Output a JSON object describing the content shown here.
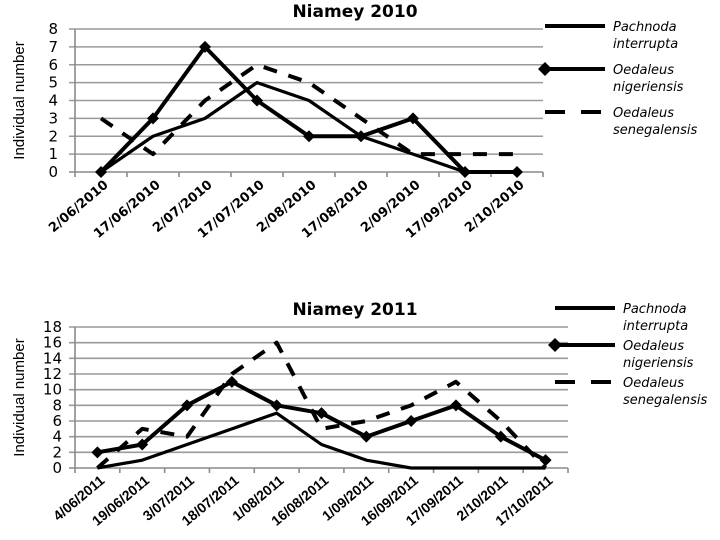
{
  "chart_data": [
    {
      "type": "line",
      "title": "Niamey  2010",
      "xlabel": "",
      "ylabel": "Individual number",
      "ylim": [
        0,
        8
      ],
      "yticks": [
        0,
        1,
        2,
        3,
        4,
        5,
        6,
        7,
        8
      ],
      "grid": true,
      "legend_position": "right",
      "categories": [
        "2/06/2010",
        "17/06/2010",
        "2/07/2010",
        "17/07/2010",
        "2/08/2010",
        "17/08/2010",
        "2/09/2010",
        "17/09/2010",
        "2/10/2010"
      ],
      "series": [
        {
          "name": "Pachnoda interrupta",
          "legend_lines": [
            "Pachnoda",
            "interrupta"
          ],
          "style": "solid",
          "values": [
            0,
            2,
            3,
            5,
            4,
            2,
            1,
            0,
            0
          ]
        },
        {
          "name": "Oedaleus nigeriensis",
          "legend_lines": [
            "Oedaleus",
            "nigeriensis"
          ],
          "style": "solid-diamond",
          "values": [
            0,
            3,
            7,
            4,
            2,
            2,
            3,
            0,
            0
          ]
        },
        {
          "name": "Oedaleus senegalensis",
          "legend_lines": [
            "Oedaleus",
            "senegalensis"
          ],
          "style": "dashed",
          "values": [
            3,
            1,
            4,
            6,
            5,
            3,
            1,
            1,
            1
          ]
        }
      ]
    },
    {
      "type": "line",
      "title": "Niamey 2011",
      "xlabel": "",
      "ylabel": "Individual  number",
      "ylim": [
        0,
        18
      ],
      "yticks": [
        0,
        2,
        4,
        6,
        8,
        10,
        12,
        14,
        16,
        18
      ],
      "grid": true,
      "legend_position": "right",
      "categories": [
        "4/06/2011",
        "19/06/2011",
        "3/07/2011",
        "18/07/2011",
        "1/08/2011",
        "16/08/2011",
        "1/09/2011",
        "16/09/2011",
        "17/09/2011",
        "2/10/2011",
        "17/10/2011"
      ],
      "series": [
        {
          "name": "Pachnoda interrupta",
          "legend_lines": [
            "Pachnoda",
            "interrupta"
          ],
          "style": "solid",
          "values": [
            0,
            1,
            3,
            5,
            7,
            3,
            1,
            0,
            0,
            0,
            0
          ]
        },
        {
          "name": "Oedaleus nigeriensis",
          "legend_lines": [
            "Oedaleus",
            "nigeriensis"
          ],
          "style": "solid-diamond",
          "values": [
            2,
            3,
            8,
            11,
            8,
            7,
            4,
            6,
            8,
            4,
            1
          ]
        },
        {
          "name": "Oedaleus senegalensis",
          "legend_lines": [
            "Oedaleus",
            "senegalensis"
          ],
          "style": "dashed",
          "values": [
            0,
            5,
            4,
            12,
            16,
            5,
            6,
            8,
            11,
            6,
            0
          ]
        }
      ]
    }
  ],
  "colors": {
    "line": "#000000",
    "grid": "#9a9a9a",
    "axis": "#8a8a8a",
    "background": "#ffffff"
  }
}
